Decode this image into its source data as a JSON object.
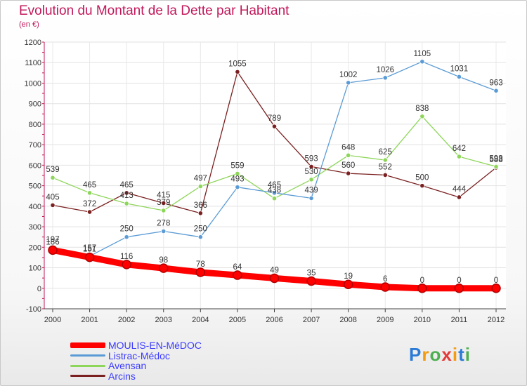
{
  "header": {
    "title": "Evolution du Montant de la Dette par Habitant",
    "unit": "(en €)"
  },
  "logo": {
    "text": "Proxiti",
    "letters": [
      "P",
      "r",
      "o",
      "x",
      "i",
      "t",
      "i"
    ]
  },
  "chart_data": {
    "type": "line",
    "x": [
      2000,
      2001,
      2002,
      2003,
      2004,
      2005,
      2006,
      2007,
      2008,
      2009,
      2010,
      2011,
      2012
    ],
    "ylim": [
      -100,
      1200
    ],
    "yticks": [
      -100,
      0,
      100,
      200,
      300,
      400,
      500,
      600,
      700,
      800,
      900,
      1000,
      1100,
      1200
    ],
    "grid": true,
    "legend_position": "bottom-left",
    "series": [
      {
        "name": "MOULIS-EN-MéDOC",
        "values": [
          186,
          151,
          116,
          98,
          78,
          64,
          49,
          35,
          19,
          6,
          0,
          0,
          0
        ],
        "color": "#ff0000",
        "width": 9
      },
      {
        "name": "Listrac-Médoc",
        "values": [
          197,
          157,
          250,
          278,
          250,
          493,
          465,
          439,
          1002,
          1026,
          1105,
          1031,
          963
        ],
        "color": "#5b9bd5",
        "width": 1.3
      },
      {
        "name": "Avensan",
        "values": [
          539,
          465,
          413,
          379,
          497,
          559,
          438,
          530,
          648,
          625,
          838,
          642,
          593
        ],
        "color": "#8ed65a",
        "width": 1.3
      },
      {
        "name": "Arcins",
        "values": [
          405,
          372,
          465,
          415,
          366,
          1055,
          789,
          593,
          560,
          552,
          500,
          444,
          588
        ],
        "color": "#7a2020",
        "width": 1.3
      }
    ]
  }
}
